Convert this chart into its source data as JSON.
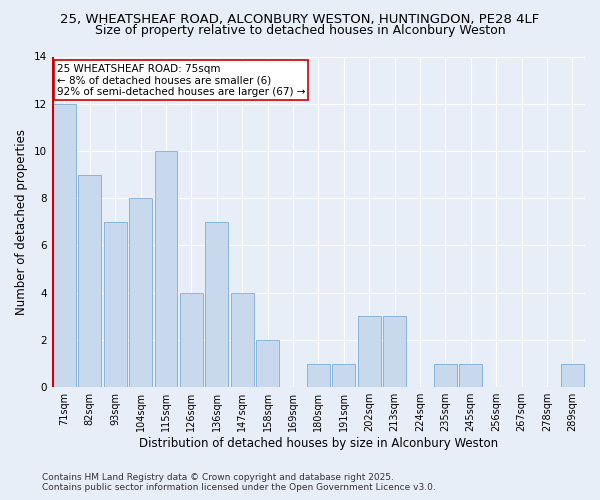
{
  "title_line1": "25, WHEATSHEAF ROAD, ALCONBURY WESTON, HUNTINGDON, PE28 4LF",
  "title_line2": "Size of property relative to detached houses in Alconbury Weston",
  "xlabel": "Distribution of detached houses by size in Alconbury Weston",
  "ylabel": "Number of detached properties",
  "categories": [
    "71sqm",
    "82sqm",
    "93sqm",
    "104sqm",
    "115sqm",
    "126sqm",
    "136sqm",
    "147sqm",
    "158sqm",
    "169sqm",
    "180sqm",
    "191sqm",
    "202sqm",
    "213sqm",
    "224sqm",
    "235sqm",
    "245sqm",
    "256sqm",
    "267sqm",
    "278sqm",
    "289sqm"
  ],
  "values": [
    12,
    9,
    7,
    8,
    10,
    4,
    7,
    4,
    2,
    0,
    1,
    1,
    3,
    3,
    0,
    1,
    1,
    0,
    0,
    0,
    1
  ],
  "bar_color": "#c8d9ee",
  "bar_edge_color": "#7aaed4",
  "highlight_line_color": "#cc0000",
  "annotation_text": "25 WHEATSHEAF ROAD: 75sqm\n← 8% of detached houses are smaller (6)\n92% of semi-detached houses are larger (67) →",
  "annotation_box_color": "#ffffff",
  "annotation_box_edge": "#cc0000",
  "ylim": [
    0,
    14
  ],
  "yticks": [
    0,
    2,
    4,
    6,
    8,
    10,
    12,
    14
  ],
  "footnote": "Contains HM Land Registry data © Crown copyright and database right 2025.\nContains public sector information licensed under the Open Government Licence v3.0.",
  "background_color": "#e8eef8",
  "grid_color": "#ffffff",
  "title_fontsize": 9.5,
  "subtitle_fontsize": 9,
  "axis_label_fontsize": 8.5,
  "tick_fontsize": 7.5,
  "annotation_fontsize": 7.5,
  "footnote_fontsize": 6.5
}
